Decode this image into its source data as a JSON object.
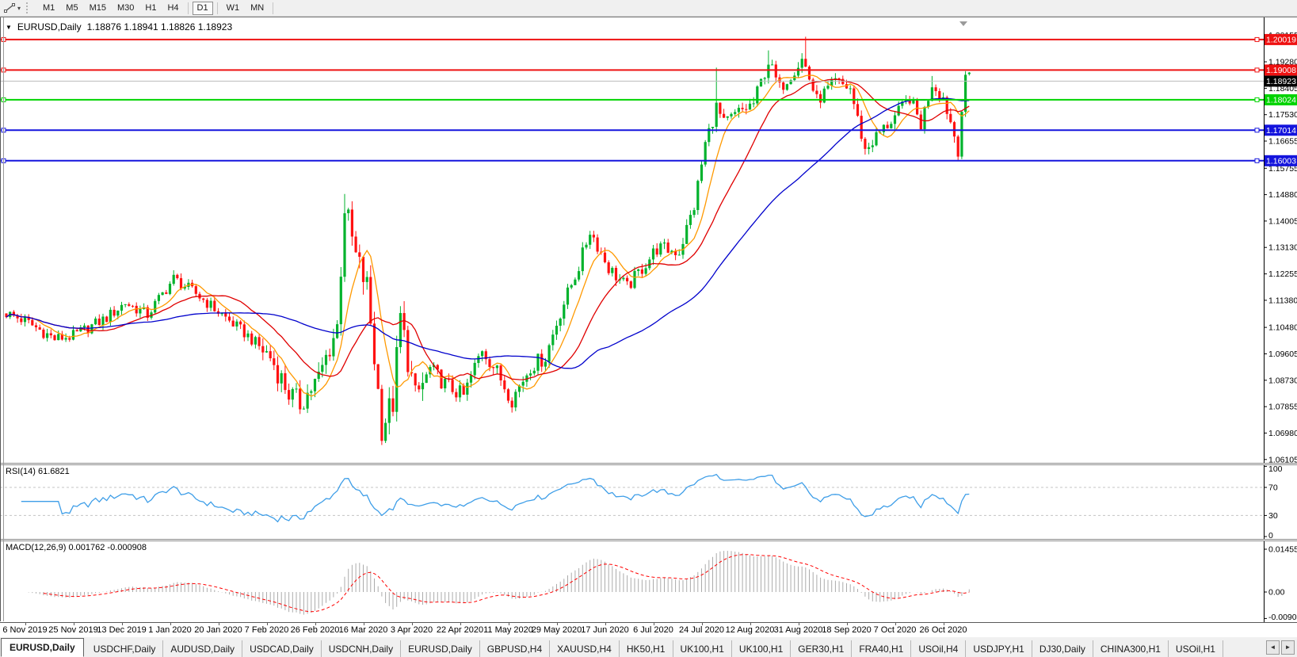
{
  "toolbar": {
    "timeframes": [
      "M1",
      "M5",
      "M15",
      "M30",
      "H1",
      "H4",
      "D1",
      "W1",
      "MN"
    ],
    "active_timeframe": "D1",
    "separators_after": [
      "H4",
      "D1",
      "MN"
    ],
    "dropdown_caret": "▾"
  },
  "title": {
    "dropdown": "▼",
    "symbol": "EURUSD,Daily",
    "ohlc": "1.18876 1.18941 1.18826 1.18923"
  },
  "price_axis": {
    "ticks": [
      "1.20155",
      "1.19280",
      "1.18405",
      "1.17530",
      "1.16655",
      "1.15755",
      "1.14880",
      "1.14005",
      "1.13130",
      "1.12255",
      "1.11380",
      "1.10480",
      "1.09605",
      "1.08730",
      "1.07855",
      "1.06980",
      "1.06105"
    ]
  },
  "hlines": [
    {
      "label": "1.20019",
      "price": 1.20019,
      "color": "#ee1111"
    },
    {
      "label": "1.19008",
      "price": 1.19008,
      "color": "#ee1111"
    },
    {
      "label": "1.18024",
      "price": 1.18024,
      "color": "#00d300"
    },
    {
      "label": "1.17014",
      "price": 1.17014,
      "color": "#1414dd"
    },
    {
      "label": "1.16003",
      "price": 1.16003,
      "color": "#1414dd"
    }
  ],
  "bid": {
    "label": "1.18923",
    "price": 1.18923,
    "line_color": "#bdbdbd",
    "box_color": "#000000",
    "text_color": "#ffffff"
  },
  "rsi": {
    "name": "RSI(14)",
    "value": "61.6821",
    "axis_labels": [
      {
        "v": 100,
        "label": "100"
      },
      {
        "v": 70,
        "label": "70"
      },
      {
        "v": 30,
        "label": "30"
      },
      {
        "v": 0,
        "label": "0"
      }
    ],
    "dashed_levels": [
      70,
      30
    ],
    "line_color": "#3e9ee8",
    "level_color": "#c4c4c4"
  },
  "macd": {
    "name": "MACD(12,26,9)",
    "values": "0.001762 -0.000908",
    "axis_labels": [
      {
        "v": 0.014556,
        "label": "0.014556"
      },
      {
        "v": 0,
        "label": "0.00"
      },
      {
        "v": -0.009,
        "label": "-0.00900"
      }
    ],
    "hist_color": "#ababab",
    "signal_color": "#ff0000"
  },
  "dates": [
    "6 Nov 2019",
    "25 Nov 2019",
    "13 Dec 2019",
    "1 Jan 2020",
    "20 Jan 2020",
    "7 Feb 2020",
    "26 Feb 2020",
    "16 Mar 2020",
    "3 Apr 2020",
    "22 Apr 2020",
    "11 May 2020",
    "29 May 2020",
    "17 Jun 2020",
    "6 Jul 2020",
    "24 Jul 2020",
    "12 Aug 2020",
    "31 Aug 2020",
    "18 Sep 2020",
    "7 Oct 2020",
    "26 Oct 2020"
  ],
  "tabs": {
    "items": [
      "EURUSD,Daily",
      "USDCHF,Daily",
      "AUDUSD,Daily",
      "USDCAD,Daily",
      "USDCNH,Daily",
      "EURUSD,Daily",
      "GBPUSD,H4",
      "XAUUSD,H4",
      "HK50,H1",
      "UK100,H1",
      "UK100,H1",
      "GER30,H1",
      "FRA40,H1",
      "USOil,H4",
      "USDJPY,H1",
      "DJ30,Daily",
      "CHINA300,H1",
      "USOil,H1"
    ],
    "active_index": 0,
    "nav_left": "◄",
    "nav_right": "►"
  },
  "chart_data": {
    "type": "candlestick",
    "symbol": "EURUSD",
    "timeframe": "Daily",
    "bars": 260,
    "visible_price_range": [
      1.0604,
      1.208
    ],
    "up_color": "#00b22c",
    "down_color": "#ff1111",
    "close_anchors": [
      [
        0,
        1.1095
      ],
      [
        5,
        1.107
      ],
      [
        13,
        1.101
      ],
      [
        18,
        1.102
      ],
      [
        27,
        1.108
      ],
      [
        32,
        1.113
      ],
      [
        38,
        1.109
      ],
      [
        45,
        1.121
      ],
      [
        51,
        1.116
      ],
      [
        58,
        1.109
      ],
      [
        65,
        1.102
      ],
      [
        71,
        1.095
      ],
      [
        76,
        1.083
      ],
      [
        79,
        1.0795
      ],
      [
        84,
        1.088
      ],
      [
        89,
        1.105
      ],
      [
        91,
        1.145
      ],
      [
        94,
        1.128
      ],
      [
        97,
        1.118
      ],
      [
        101,
        1.072
      ],
      [
        104,
        1.08
      ],
      [
        106,
        1.108
      ],
      [
        110,
        1.081
      ],
      [
        114,
        1.091
      ],
      [
        118,
        1.086
      ],
      [
        123,
        1.082
      ],
      [
        128,
        1.098
      ],
      [
        132,
        1.09
      ],
      [
        136,
        1.081
      ],
      [
        141,
        1.092
      ],
      [
        145,
        1.095
      ],
      [
        149,
        1.11
      ],
      [
        154,
        1.125
      ],
      [
        157,
        1.137
      ],
      [
        162,
        1.1245
      ],
      [
        167,
        1.118
      ],
      [
        175,
        1.131
      ],
      [
        181,
        1.13
      ],
      [
        185,
        1.145
      ],
      [
        188,
        1.1656
      ],
      [
        191,
        1.1778
      ],
      [
        193,
        1.172
      ],
      [
        197,
        1.176
      ],
      [
        201,
        1.179
      ],
      [
        205,
        1.193
      ],
      [
        208,
        1.184
      ],
      [
        214,
        1.1936
      ],
      [
        215,
        1.191
      ],
      [
        218,
        1.18
      ],
      [
        223,
        1.186
      ],
      [
        227,
        1.184
      ],
      [
        231,
        1.1635
      ],
      [
        234,
        1.168
      ],
      [
        240,
        1.176
      ],
      [
        243,
        1.181
      ],
      [
        246,
        1.172
      ],
      [
        249,
        1.186
      ],
      [
        252,
        1.181
      ],
      [
        254,
        1.173
      ],
      [
        256,
        1.164
      ],
      [
        258,
        1.1885
      ],
      [
        259,
        1.18923
      ]
    ],
    "volatility_spans": [
      [
        0,
        68,
        1.0
      ],
      [
        69,
        88,
        2.0
      ],
      [
        89,
        112,
        2.6
      ],
      [
        113,
        150,
        1.4
      ],
      [
        151,
        170,
        1.2
      ],
      [
        171,
        205,
        1.3
      ],
      [
        206,
        246,
        1.2
      ],
      [
        247,
        259,
        1.3
      ]
    ],
    "wick_overrides": [
      {
        "bar": 91,
        "high": 1.149
      },
      {
        "bar": 101,
        "low": 1.0695
      },
      {
        "bar": 191,
        "high": 1.1909
      },
      {
        "bar": 205,
        "high": 1.1966
      },
      {
        "bar": 215,
        "high": 1.2011
      },
      {
        "bar": 249,
        "high": 1.1881
      },
      {
        "bar": 256,
        "low": 1.1602
      },
      {
        "bar": 258,
        "high": 1.1897
      }
    ],
    "final_bar": {
      "open": 1.18876,
      "high": 1.18941,
      "low": 1.18826,
      "close": 1.18923
    },
    "moving_averages": [
      {
        "period": 8,
        "color": "#ff9900"
      },
      {
        "period": 20,
        "color": "#e00000"
      },
      {
        "period": 55,
        "color": "#0000cc"
      }
    ],
    "indicators": {
      "rsi": {
        "period": 14,
        "last": 61.6821
      },
      "macd": {
        "fast": 12,
        "slow": 26,
        "signal": 9,
        "last_main": 0.001762,
        "last_signal": -0.000908
      }
    }
  }
}
